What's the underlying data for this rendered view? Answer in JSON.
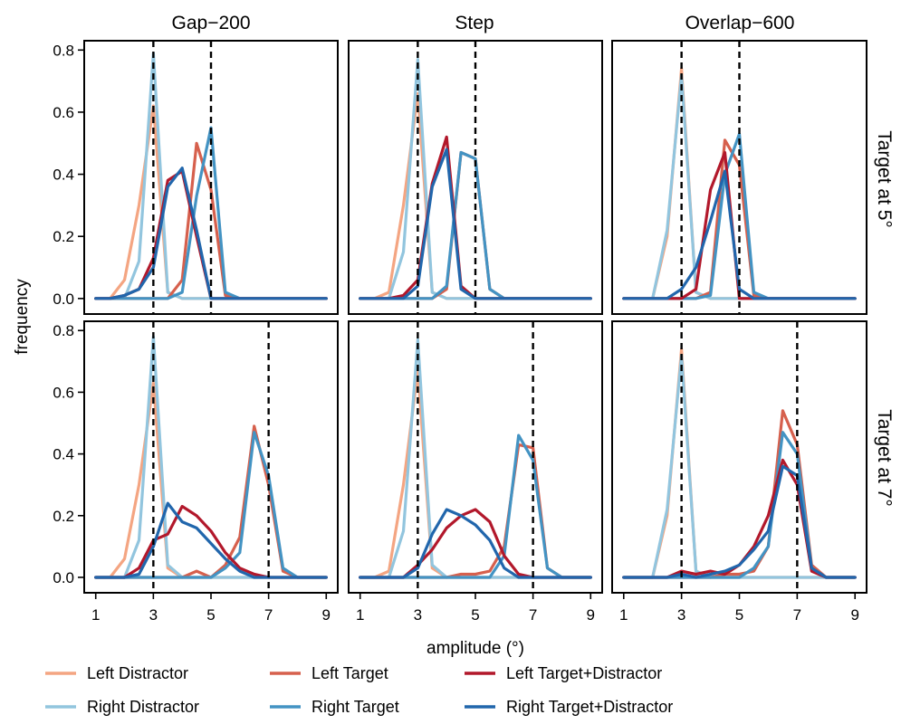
{
  "chart_data": {
    "type": "line",
    "xlabel": "amplitude (°)",
    "ylabel": "frequency",
    "xlim": [
      0.6,
      9.4
    ],
    "ylim": [
      -0.05,
      0.83
    ],
    "xticks": [
      1,
      3,
      5,
      7,
      9
    ],
    "yticks": [
      0.0,
      0.2,
      0.4,
      0.6,
      0.8
    ],
    "xtick_labels": [
      "1",
      "3",
      "5",
      "7",
      "9"
    ],
    "ytick_labels": [
      "0.0",
      "0.2",
      "0.4",
      "0.6",
      "0.8"
    ],
    "grid": false,
    "legend_placement": "bottom",
    "column_titles": [
      "Gap−200",
      "Step",
      "Overlap−600"
    ],
    "row_titles": [
      "Target at 5°",
      "Target at 7°"
    ],
    "x": [
      1.0,
      1.5,
      2.0,
      2.5,
      3.0,
      3.5,
      4.0,
      4.5,
      5.0,
      5.5,
      6.0,
      6.5,
      7.0,
      7.5,
      8.0,
      8.5,
      9.0
    ],
    "series_styles": [
      {
        "name": "Left Distractor",
        "color": "#f4a582"
      },
      {
        "name": "Right Distractor",
        "color": "#92c5de"
      },
      {
        "name": "Left Target",
        "color": "#d6604d"
      },
      {
        "name": "Right Target",
        "color": "#4393c3"
      },
      {
        "name": "Left Target+Distractor",
        "color": "#b2182b"
      },
      {
        "name": "Right Target+Distractor",
        "color": "#2166ac"
      }
    ],
    "panels": [
      {
        "row": 0,
        "col": 0,
        "dashed_x": [
          3,
          5
        ],
        "series": [
          {
            "name": "Left Distractor",
            "values": [
              0.0,
              0.0,
              0.06,
              0.3,
              0.62,
              0.02,
              0.0,
              0.0,
              0.0,
              0.0,
              0.0,
              0.0,
              0.0,
              0.0,
              0.0,
              0.0,
              0.0
            ]
          },
          {
            "name": "Right Distractor",
            "values": [
              0.0,
              0.0,
              0.0,
              0.12,
              0.79,
              0.02,
              0.0,
              0.0,
              0.0,
              0.0,
              0.0,
              0.0,
              0.0,
              0.0,
              0.0,
              0.0,
              0.0
            ]
          },
          {
            "name": "Left Target",
            "values": [
              0.0,
              0.0,
              0.0,
              0.0,
              0.0,
              0.0,
              0.06,
              0.5,
              0.35,
              0.01,
              0.0,
              0.0,
              0.0,
              0.0,
              0.0,
              0.0,
              0.0
            ]
          },
          {
            "name": "Right Target",
            "values": [
              0.0,
              0.0,
              0.0,
              0.0,
              0.0,
              0.0,
              0.02,
              0.33,
              0.55,
              0.02,
              0.0,
              0.0,
              0.0,
              0.0,
              0.0,
              0.0,
              0.0
            ]
          },
          {
            "name": "Left Target+Distractor",
            "values": [
              0.0,
              0.0,
              0.01,
              0.03,
              0.13,
              0.38,
              0.41,
              0.2,
              0.0,
              0.0,
              0.0,
              0.0,
              0.0,
              0.0,
              0.0,
              0.0,
              0.0
            ]
          },
          {
            "name": "Right Target+Distractor",
            "values": [
              0.0,
              0.0,
              0.01,
              0.03,
              0.1,
              0.36,
              0.42,
              0.22,
              0.0,
              0.0,
              0.0,
              0.0,
              0.0,
              0.0,
              0.0,
              0.0,
              0.0
            ]
          }
        ]
      },
      {
        "row": 0,
        "col": 1,
        "dashed_x": [
          3,
          5
        ],
        "series": [
          {
            "name": "Left Distractor",
            "values": [
              0.0,
              0.0,
              0.02,
              0.3,
              0.66,
              0.02,
              0.0,
              0.0,
              0.0,
              0.0,
              0.0,
              0.0,
              0.0,
              0.0,
              0.0,
              0.0,
              0.0
            ]
          },
          {
            "name": "Right Distractor",
            "values": [
              0.0,
              0.0,
              0.0,
              0.15,
              0.77,
              0.02,
              0.0,
              0.0,
              0.0,
              0.0,
              0.0,
              0.0,
              0.0,
              0.0,
              0.0,
              0.0,
              0.0
            ]
          },
          {
            "name": "Left Target",
            "values": [
              0.0,
              0.0,
              0.0,
              0.0,
              0.0,
              0.0,
              0.03,
              0.47,
              0.45,
              0.03,
              0.0,
              0.0,
              0.0,
              0.0,
              0.0,
              0.0,
              0.0
            ]
          },
          {
            "name": "Right Target",
            "values": [
              0.0,
              0.0,
              0.0,
              0.0,
              0.0,
              0.0,
              0.04,
              0.47,
              0.45,
              0.03,
              0.0,
              0.0,
              0.0,
              0.0,
              0.0,
              0.0,
              0.0
            ]
          },
          {
            "name": "Left Target+Distractor",
            "values": [
              0.0,
              0.0,
              0.0,
              0.01,
              0.06,
              0.37,
              0.52,
              0.04,
              0.0,
              0.0,
              0.0,
              0.0,
              0.0,
              0.0,
              0.0,
              0.0,
              0.0
            ]
          },
          {
            "name": "Right Target+Distractor",
            "values": [
              0.0,
              0.0,
              0.0,
              0.0,
              0.04,
              0.36,
              0.48,
              0.03,
              0.0,
              0.0,
              0.0,
              0.0,
              0.0,
              0.0,
              0.0,
              0.0,
              0.0
            ]
          }
        ]
      },
      {
        "row": 0,
        "col": 2,
        "dashed_x": [
          3,
          5
        ],
        "series": [
          {
            "name": "Left Distractor",
            "values": [
              0.0,
              0.0,
              0.0,
              0.2,
              0.74,
              0.02,
              0.0,
              0.0,
              0.0,
              0.0,
              0.0,
              0.0,
              0.0,
              0.0,
              0.0,
              0.0,
              0.0
            ]
          },
          {
            "name": "Right Distractor",
            "values": [
              0.0,
              0.0,
              0.0,
              0.22,
              0.72,
              0.02,
              0.0,
              0.0,
              0.0,
              0.0,
              0.0,
              0.0,
              0.0,
              0.0,
              0.0,
              0.0,
              0.0
            ]
          },
          {
            "name": "Left Target",
            "values": [
              0.0,
              0.0,
              0.0,
              0.0,
              0.0,
              0.0,
              0.02,
              0.51,
              0.43,
              0.01,
              0.0,
              0.0,
              0.0,
              0.0,
              0.0,
              0.0,
              0.0
            ]
          },
          {
            "name": "Right Target",
            "values": [
              0.0,
              0.0,
              0.0,
              0.0,
              0.0,
              0.0,
              0.01,
              0.4,
              0.53,
              0.02,
              0.0,
              0.0,
              0.0,
              0.0,
              0.0,
              0.0,
              0.0
            ]
          },
          {
            "name": "Left Target+Distractor",
            "values": [
              0.0,
              0.0,
              0.0,
              0.0,
              0.0,
              0.03,
              0.35,
              0.47,
              0.0,
              0.0,
              0.0,
              0.0,
              0.0,
              0.0,
              0.0,
              0.0,
              0.0
            ]
          },
          {
            "name": "Right Target+Distractor",
            "values": [
              0.0,
              0.0,
              0.0,
              0.0,
              0.03,
              0.1,
              0.25,
              0.41,
              0.03,
              0.0,
              0.0,
              0.0,
              0.0,
              0.0,
              0.0,
              0.0,
              0.0
            ]
          }
        ]
      },
      {
        "row": 1,
        "col": 0,
        "dashed_x": [
          3,
          7
        ],
        "series": [
          {
            "name": "Left Distractor",
            "values": [
              0.0,
              0.0,
              0.06,
              0.3,
              0.63,
              0.03,
              0.0,
              0.0,
              0.0,
              0.0,
              0.0,
              0.0,
              0.0,
              0.0,
              0.0,
              0.0,
              0.0
            ]
          },
          {
            "name": "Right Distractor",
            "values": [
              0.0,
              0.0,
              0.0,
              0.12,
              0.78,
              0.04,
              0.0,
              0.0,
              0.0,
              0.0,
              0.0,
              0.0,
              0.0,
              0.0,
              0.0,
              0.0,
              0.0
            ]
          },
          {
            "name": "Left Target",
            "values": [
              0.0,
              0.0,
              0.0,
              0.0,
              0.0,
              0.0,
              0.0,
              0.02,
              0.0,
              0.04,
              0.13,
              0.49,
              0.3,
              0.02,
              0.0,
              0.0,
              0.0
            ]
          },
          {
            "name": "Right Target",
            "values": [
              0.0,
              0.0,
              0.0,
              0.0,
              0.0,
              0.0,
              0.0,
              0.0,
              0.0,
              0.03,
              0.08,
              0.47,
              0.33,
              0.03,
              0.0,
              0.0,
              0.0
            ]
          },
          {
            "name": "Left Target+Distractor",
            "values": [
              0.0,
              0.0,
              0.0,
              0.03,
              0.12,
              0.14,
              0.23,
              0.2,
              0.15,
              0.08,
              0.03,
              0.01,
              0.0,
              0.0,
              0.0,
              0.0,
              0.0
            ]
          },
          {
            "name": "Right Target+Distractor",
            "values": [
              0.0,
              0.0,
              0.0,
              0.01,
              0.1,
              0.24,
              0.18,
              0.16,
              0.11,
              0.06,
              0.02,
              0.0,
              0.0,
              0.0,
              0.0,
              0.0,
              0.0
            ]
          }
        ]
      },
      {
        "row": 1,
        "col": 1,
        "dashed_x": [
          3,
          7
        ],
        "series": [
          {
            "name": "Left Distractor",
            "values": [
              0.0,
              0.0,
              0.02,
              0.3,
              0.67,
              0.03,
              0.0,
              0.0,
              0.0,
              0.0,
              0.0,
              0.0,
              0.0,
              0.0,
              0.0,
              0.0,
              0.0
            ]
          },
          {
            "name": "Right Distractor",
            "values": [
              0.0,
              0.0,
              0.0,
              0.15,
              0.77,
              0.04,
              0.0,
              0.0,
              0.0,
              0.0,
              0.0,
              0.0,
              0.0,
              0.0,
              0.0,
              0.0,
              0.0
            ]
          },
          {
            "name": "Left Target",
            "values": [
              0.0,
              0.0,
              0.0,
              0.0,
              0.0,
              0.0,
              0.0,
              0.01,
              0.01,
              0.02,
              0.1,
              0.43,
              0.42,
              0.03,
              0.0,
              0.0,
              0.0
            ]
          },
          {
            "name": "Right Target",
            "values": [
              0.0,
              0.0,
              0.0,
              0.0,
              0.0,
              0.0,
              0.0,
              0.0,
              0.0,
              0.0,
              0.07,
              0.46,
              0.38,
              0.03,
              0.0,
              0.0,
              0.0
            ]
          },
          {
            "name": "Left Target+Distractor",
            "values": [
              0.0,
              0.0,
              0.0,
              0.0,
              0.04,
              0.09,
              0.16,
              0.2,
              0.22,
              0.18,
              0.07,
              0.01,
              0.0,
              0.0,
              0.0,
              0.0,
              0.0
            ]
          },
          {
            "name": "Right Target+Distractor",
            "values": [
              0.0,
              0.0,
              0.0,
              0.0,
              0.03,
              0.14,
              0.22,
              0.2,
              0.17,
              0.12,
              0.03,
              0.0,
              0.0,
              0.0,
              0.0,
              0.0,
              0.0
            ]
          }
        ]
      },
      {
        "row": 1,
        "col": 2,
        "dashed_x": [
          3,
          7
        ],
        "series": [
          {
            "name": "Left Distractor",
            "values": [
              0.0,
              0.0,
              0.0,
              0.2,
              0.74,
              0.02,
              0.0,
              0.0,
              0.0,
              0.0,
              0.0,
              0.0,
              0.0,
              0.0,
              0.0,
              0.0,
              0.0
            ]
          },
          {
            "name": "Right Distractor",
            "values": [
              0.0,
              0.0,
              0.0,
              0.22,
              0.72,
              0.02,
              0.0,
              0.0,
              0.0,
              0.0,
              0.0,
              0.0,
              0.0,
              0.0,
              0.0,
              0.0,
              0.0
            ]
          },
          {
            "name": "Left Target",
            "values": [
              0.0,
              0.0,
              0.0,
              0.0,
              0.0,
              0.0,
              0.0,
              0.01,
              0.01,
              0.02,
              0.1,
              0.54,
              0.43,
              0.04,
              0.0,
              0.0,
              0.0
            ]
          },
          {
            "name": "Right Target",
            "values": [
              0.0,
              0.0,
              0.0,
              0.0,
              0.0,
              0.0,
              0.0,
              0.0,
              0.0,
              0.03,
              0.1,
              0.47,
              0.4,
              0.03,
              0.0,
              0.0,
              0.0
            ]
          },
          {
            "name": "Left Target+Distractor",
            "values": [
              0.0,
              0.0,
              0.0,
              0.0,
              0.02,
              0.01,
              0.02,
              0.01,
              0.04,
              0.1,
              0.2,
              0.38,
              0.3,
              0.02,
              0.0,
              0.0,
              0.0
            ]
          },
          {
            "name": "Right Target+Distractor",
            "values": [
              0.0,
              0.0,
              0.0,
              0.0,
              0.01,
              0.0,
              0.01,
              0.02,
              0.04,
              0.09,
              0.15,
              0.36,
              0.33,
              0.03,
              0.0,
              0.0,
              0.0
            ]
          }
        ]
      }
    ]
  }
}
